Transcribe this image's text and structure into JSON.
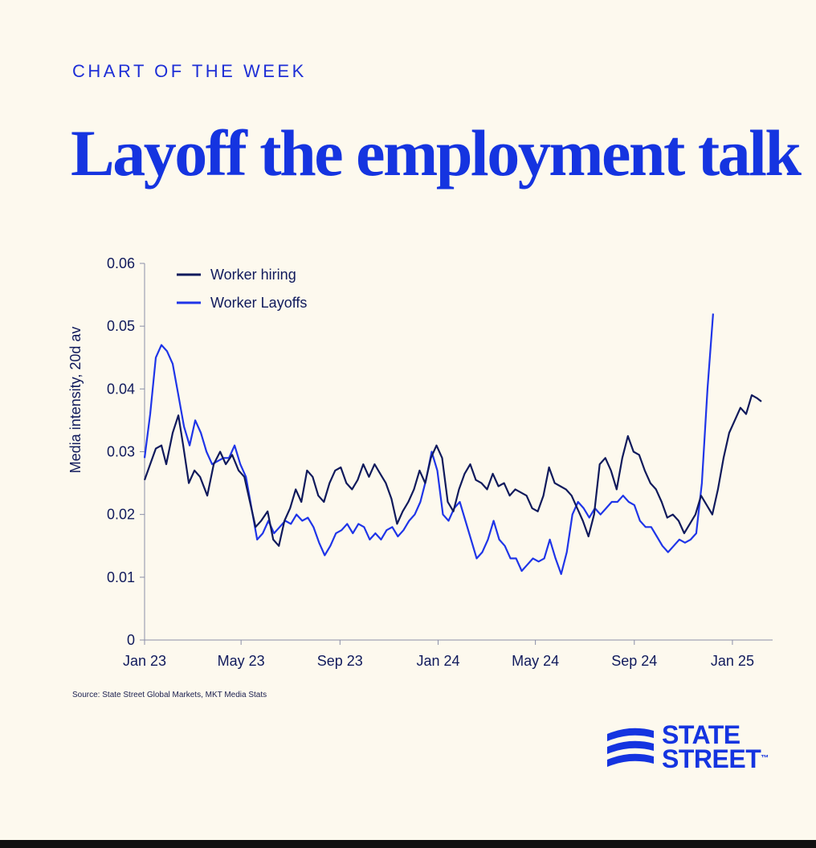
{
  "kicker": "CHART OF THE WEEK",
  "headline": "Layoff the employment talk",
  "source": "Source: State Street Global Markets, MKT Media Stats",
  "logo": {
    "line1": "STATE",
    "line2": "STREET",
    "mark": "™",
    "icon": "state-street-waves-icon"
  },
  "colors": {
    "background": "#FDF9EE",
    "accent": "#1534E0",
    "hiring": "#101A5C",
    "layoffs": "#1F35E8"
  },
  "chart_data": {
    "type": "line",
    "xlabel": "",
    "ylabel": "Media intensity, 20d av",
    "ylim": [
      0,
      0.06
    ],
    "yticks": [
      "0",
      "0.01",
      "0.02",
      "0.03",
      "0.04",
      "0.05",
      "0.06"
    ],
    "xlim": [
      "2023-01-01",
      "2025-02-20"
    ],
    "xticks": [
      {
        "label": "Jan 23",
        "date": "2023-01-01"
      },
      {
        "label": "May 23",
        "date": "2023-05-01"
      },
      {
        "label": "Sep 23",
        "date": "2023-09-01"
      },
      {
        "label": "Jan 24",
        "date": "2024-01-01"
      },
      {
        "label": "May 24",
        "date": "2024-05-01"
      },
      {
        "label": "Sep 24",
        "date": "2024-09-01"
      },
      {
        "label": "Jan 25",
        "date": "2025-01-01"
      }
    ],
    "grid": false,
    "legend": "top-left",
    "series": [
      {
        "name": "Worker hiring",
        "color": "#101A5C",
        "points": [
          [
            "2023-01-01",
            0.0255
          ],
          [
            "2023-01-08",
            0.028
          ],
          [
            "2023-01-15",
            0.0305
          ],
          [
            "2023-01-22",
            0.031
          ],
          [
            "2023-01-28",
            0.028
          ],
          [
            "2023-02-05",
            0.033
          ],
          [
            "2023-02-12",
            0.0358
          ],
          [
            "2023-02-18",
            0.031
          ],
          [
            "2023-02-25",
            0.025
          ],
          [
            "2023-03-04",
            0.027
          ],
          [
            "2023-03-11",
            0.026
          ],
          [
            "2023-03-20",
            0.023
          ],
          [
            "2023-03-28",
            0.028
          ],
          [
            "2023-04-05",
            0.03
          ],
          [
            "2023-04-12",
            0.028
          ],
          [
            "2023-04-20",
            0.0295
          ],
          [
            "2023-04-28",
            0.027
          ],
          [
            "2023-05-05",
            0.026
          ],
          [
            "2023-05-12",
            0.022
          ],
          [
            "2023-05-19",
            0.018
          ],
          [
            "2023-05-26",
            0.019
          ],
          [
            "2023-06-03",
            0.0205
          ],
          [
            "2023-06-10",
            0.016
          ],
          [
            "2023-06-17",
            0.015
          ],
          [
            "2023-06-24",
            0.019
          ],
          [
            "2023-07-01",
            0.021
          ],
          [
            "2023-07-08",
            0.024
          ],
          [
            "2023-07-15",
            0.022
          ],
          [
            "2023-07-22",
            0.027
          ],
          [
            "2023-07-29",
            0.026
          ],
          [
            "2023-08-05",
            0.023
          ],
          [
            "2023-08-12",
            0.022
          ],
          [
            "2023-08-19",
            0.025
          ],
          [
            "2023-08-26",
            0.027
          ],
          [
            "2023-09-02",
            0.0275
          ],
          [
            "2023-09-09",
            0.025
          ],
          [
            "2023-09-16",
            0.024
          ],
          [
            "2023-09-23",
            0.0255
          ],
          [
            "2023-09-30",
            0.028
          ],
          [
            "2023-10-07",
            0.026
          ],
          [
            "2023-10-14",
            0.028
          ],
          [
            "2023-10-21",
            0.0265
          ],
          [
            "2023-10-28",
            0.025
          ],
          [
            "2023-11-04",
            0.0225
          ],
          [
            "2023-11-11",
            0.0185
          ],
          [
            "2023-11-18",
            0.0205
          ],
          [
            "2023-11-25",
            0.022
          ],
          [
            "2023-12-02",
            0.024
          ],
          [
            "2023-12-09",
            0.027
          ],
          [
            "2023-12-16",
            0.025
          ],
          [
            "2023-12-23",
            0.029
          ],
          [
            "2023-12-30",
            0.031
          ],
          [
            "2024-01-06",
            0.029
          ],
          [
            "2024-01-13",
            0.022
          ],
          [
            "2024-01-20",
            0.0205
          ],
          [
            "2024-01-27",
            0.024
          ],
          [
            "2024-02-03",
            0.0265
          ],
          [
            "2024-02-10",
            0.028
          ],
          [
            "2024-02-17",
            0.0255
          ],
          [
            "2024-02-24",
            0.025
          ],
          [
            "2024-03-02",
            0.024
          ],
          [
            "2024-03-09",
            0.0265
          ],
          [
            "2024-03-16",
            0.0245
          ],
          [
            "2024-03-23",
            0.025
          ],
          [
            "2024-03-30",
            0.023
          ],
          [
            "2024-04-06",
            0.024
          ],
          [
            "2024-04-13",
            0.0235
          ],
          [
            "2024-04-20",
            0.023
          ],
          [
            "2024-04-27",
            0.021
          ],
          [
            "2024-05-04",
            0.0205
          ],
          [
            "2024-05-11",
            0.023
          ],
          [
            "2024-05-18",
            0.0275
          ],
          [
            "2024-05-25",
            0.025
          ],
          [
            "2024-06-01",
            0.0245
          ],
          [
            "2024-06-08",
            0.024
          ],
          [
            "2024-06-15",
            0.023
          ],
          [
            "2024-06-22",
            0.021
          ],
          [
            "2024-06-29",
            0.019
          ],
          [
            "2024-07-06",
            0.0165
          ],
          [
            "2024-07-13",
            0.02
          ],
          [
            "2024-07-20",
            0.028
          ],
          [
            "2024-07-27",
            0.029
          ],
          [
            "2024-08-03",
            0.027
          ],
          [
            "2024-08-10",
            0.024
          ],
          [
            "2024-08-17",
            0.029
          ],
          [
            "2024-08-24",
            0.0325
          ],
          [
            "2024-08-31",
            0.03
          ],
          [
            "2024-09-07",
            0.0295
          ],
          [
            "2024-09-14",
            0.027
          ],
          [
            "2024-09-21",
            0.025
          ],
          [
            "2024-09-28",
            0.024
          ],
          [
            "2024-10-05",
            0.022
          ],
          [
            "2024-10-12",
            0.0195
          ],
          [
            "2024-10-19",
            0.02
          ],
          [
            "2024-10-26",
            0.019
          ],
          [
            "2024-11-02",
            0.017
          ],
          [
            "2024-11-09",
            0.0185
          ],
          [
            "2024-11-16",
            0.02
          ],
          [
            "2024-11-23",
            0.023
          ],
          [
            "2024-11-30",
            0.0215
          ],
          [
            "2024-12-07",
            0.02
          ],
          [
            "2024-12-14",
            0.024
          ],
          [
            "2024-12-21",
            0.029
          ],
          [
            "2024-12-28",
            0.033
          ],
          [
            "2025-01-04",
            0.035
          ],
          [
            "2025-01-11",
            0.037
          ],
          [
            "2025-01-18",
            0.036
          ],
          [
            "2025-01-25",
            0.039
          ],
          [
            "2025-02-01",
            0.0385
          ],
          [
            "2025-02-06",
            0.038
          ]
        ]
      },
      {
        "name": "Worker Layoffs",
        "color": "#1F35E8",
        "points": [
          [
            "2023-01-01",
            0.029
          ],
          [
            "2023-01-08",
            0.036
          ],
          [
            "2023-01-15",
            0.045
          ],
          [
            "2023-01-22",
            0.047
          ],
          [
            "2023-01-29",
            0.046
          ],
          [
            "2023-02-05",
            0.044
          ],
          [
            "2023-02-12",
            0.039
          ],
          [
            "2023-02-19",
            0.034
          ],
          [
            "2023-02-26",
            0.031
          ],
          [
            "2023-03-05",
            0.035
          ],
          [
            "2023-03-12",
            0.033
          ],
          [
            "2023-03-19",
            0.03
          ],
          [
            "2023-03-26",
            0.028
          ],
          [
            "2023-04-02",
            0.0285
          ],
          [
            "2023-04-09",
            0.029
          ],
          [
            "2023-04-16",
            0.029
          ],
          [
            "2023-04-23",
            0.031
          ],
          [
            "2023-04-30",
            0.028
          ],
          [
            "2023-05-07",
            0.026
          ],
          [
            "2023-05-14",
            0.021
          ],
          [
            "2023-05-21",
            0.016
          ],
          [
            "2023-05-28",
            0.017
          ],
          [
            "2023-06-04",
            0.019
          ],
          [
            "2023-06-11",
            0.017
          ],
          [
            "2023-06-18",
            0.018
          ],
          [
            "2023-06-25",
            0.019
          ],
          [
            "2023-07-02",
            0.0185
          ],
          [
            "2023-07-09",
            0.02
          ],
          [
            "2023-07-16",
            0.019
          ],
          [
            "2023-07-23",
            0.0195
          ],
          [
            "2023-07-30",
            0.018
          ],
          [
            "2023-08-06",
            0.0155
          ],
          [
            "2023-08-13",
            0.0135
          ],
          [
            "2023-08-20",
            0.015
          ],
          [
            "2023-08-27",
            0.017
          ],
          [
            "2023-09-03",
            0.0175
          ],
          [
            "2023-09-10",
            0.0185
          ],
          [
            "2023-09-17",
            0.017
          ],
          [
            "2023-09-24",
            0.0185
          ],
          [
            "2023-10-01",
            0.018
          ],
          [
            "2023-10-08",
            0.016
          ],
          [
            "2023-10-15",
            0.017
          ],
          [
            "2023-10-22",
            0.016
          ],
          [
            "2023-10-29",
            0.0175
          ],
          [
            "2023-11-05",
            0.018
          ],
          [
            "2023-11-12",
            0.0165
          ],
          [
            "2023-11-19",
            0.0175
          ],
          [
            "2023-11-26",
            0.019
          ],
          [
            "2023-12-03",
            0.02
          ],
          [
            "2023-12-10",
            0.022
          ],
          [
            "2023-12-17",
            0.0255
          ],
          [
            "2023-12-24",
            0.03
          ],
          [
            "2023-12-31",
            0.027
          ],
          [
            "2024-01-07",
            0.02
          ],
          [
            "2024-01-14",
            0.019
          ],
          [
            "2024-01-21",
            0.021
          ],
          [
            "2024-01-28",
            0.022
          ],
          [
            "2024-02-04",
            0.019
          ],
          [
            "2024-02-11",
            0.016
          ],
          [
            "2024-02-18",
            0.013
          ],
          [
            "2024-02-25",
            0.014
          ],
          [
            "2024-03-03",
            0.016
          ],
          [
            "2024-03-10",
            0.019
          ],
          [
            "2024-03-17",
            0.016
          ],
          [
            "2024-03-24",
            0.015
          ],
          [
            "2024-03-31",
            0.013
          ],
          [
            "2024-04-07",
            0.013
          ],
          [
            "2024-04-14",
            0.011
          ],
          [
            "2024-04-21",
            0.012
          ],
          [
            "2024-04-28",
            0.013
          ],
          [
            "2024-05-05",
            0.0125
          ],
          [
            "2024-05-12",
            0.013
          ],
          [
            "2024-05-19",
            0.016
          ],
          [
            "2024-05-26",
            0.013
          ],
          [
            "2024-06-02",
            0.0105
          ],
          [
            "2024-06-09",
            0.014
          ],
          [
            "2024-06-16",
            0.02
          ],
          [
            "2024-06-23",
            0.022
          ],
          [
            "2024-06-30",
            0.021
          ],
          [
            "2024-07-07",
            0.0195
          ],
          [
            "2024-07-14",
            0.021
          ],
          [
            "2024-07-21",
            0.02
          ],
          [
            "2024-07-28",
            0.021
          ],
          [
            "2024-08-04",
            0.022
          ],
          [
            "2024-08-11",
            0.022
          ],
          [
            "2024-08-18",
            0.023
          ],
          [
            "2024-08-25",
            0.022
          ],
          [
            "2024-09-01",
            0.0215
          ],
          [
            "2024-09-08",
            0.019
          ],
          [
            "2024-09-15",
            0.018
          ],
          [
            "2024-09-22",
            0.018
          ],
          [
            "2024-09-29",
            0.0165
          ],
          [
            "2024-10-06",
            0.015
          ],
          [
            "2024-10-13",
            0.014
          ],
          [
            "2024-10-20",
            0.015
          ],
          [
            "2024-10-27",
            0.016
          ],
          [
            "2024-11-03",
            0.0155
          ],
          [
            "2024-11-10",
            0.016
          ],
          [
            "2024-11-17",
            0.017
          ],
          [
            "2024-11-24",
            0.025
          ],
          [
            "2024-12-01",
            0.04
          ],
          [
            "2024-12-08",
            0.052
          ]
        ]
      }
    ]
  }
}
